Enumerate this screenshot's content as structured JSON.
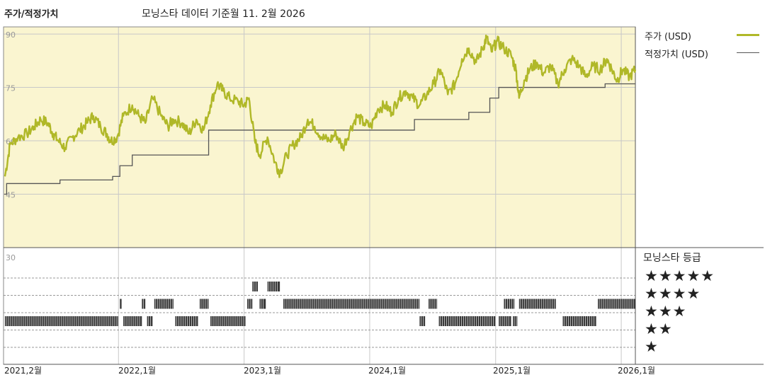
{
  "header": {
    "left_title": "주가/적정가치",
    "source_note": "모닝스타 데이터 기준월 11. 2월 2026"
  },
  "legend": {
    "price_label": "주가 (USD)",
    "fair_label": "적정가치 (USD)",
    "price_color": "#b0b828",
    "fair_color": "#555555"
  },
  "colors": {
    "plot_background": "#faf5d0",
    "rating_bar": "#3a3a3a"
  },
  "rating_panel": {
    "title": "모닝스타 등급",
    "star_labels": [
      "★★★★★",
      "★★★★",
      "★★★",
      "★★",
      "★"
    ]
  },
  "chart_data": {
    "type": "line",
    "yticks": [
      "90",
      "75",
      "60",
      "45",
      "30"
    ],
    "ylim": [
      30,
      92
    ],
    "xlim": [
      "2021-02-01",
      "2026-02-11"
    ],
    "xticks": [
      {
        "date": "2021-02-01",
        "label": "2021,2월"
      },
      {
        "date": "2022-01-01",
        "label": "2022,1월"
      },
      {
        "date": "2023-01-01",
        "label": "2023,1월"
      },
      {
        "date": "2024-01-01",
        "label": "2024,1월"
      },
      {
        "date": "2025-01-01",
        "label": "2025,1월"
      },
      {
        "date": "2026-01-01",
        "label": "2026,1월"
      }
    ],
    "series": [
      {
        "name": "주가 (USD)",
        "points": [
          [
            "2021-02-05",
            50
          ],
          [
            "2021-02-20",
            59
          ],
          [
            "2021-03-15",
            61
          ],
          [
            "2021-04-10",
            62
          ],
          [
            "2021-05-01",
            64
          ],
          [
            "2021-05-20",
            66
          ],
          [
            "2021-06-10",
            65
          ],
          [
            "2021-06-25",
            62
          ],
          [
            "2021-07-10",
            60
          ],
          [
            "2021-07-30",
            58
          ],
          [
            "2021-08-20",
            61
          ],
          [
            "2021-09-10",
            63
          ],
          [
            "2021-10-01",
            65
          ],
          [
            "2021-10-20",
            67
          ],
          [
            "2021-11-10",
            64
          ],
          [
            "2021-11-28",
            62
          ],
          [
            "2021-12-10",
            60
          ],
          [
            "2021-12-28",
            61
          ],
          [
            "2022-01-15",
            67
          ],
          [
            "2022-02-10",
            70
          ],
          [
            "2022-03-01",
            67
          ],
          [
            "2022-03-20",
            65
          ],
          [
            "2022-04-10",
            72
          ],
          [
            "2022-05-05",
            67
          ],
          [
            "2022-05-25",
            64
          ],
          [
            "2022-06-10",
            66
          ],
          [
            "2022-07-05",
            65
          ],
          [
            "2022-07-25",
            62
          ],
          [
            "2022-08-15",
            66
          ],
          [
            "2022-09-05",
            63
          ],
          [
            "2022-09-25",
            70
          ],
          [
            "2022-10-15",
            76
          ],
          [
            "2022-11-01",
            74
          ],
          [
            "2022-11-20",
            72
          ],
          [
            "2022-12-15",
            71
          ],
          [
            "2023-01-01",
            70
          ],
          [
            "2023-01-15",
            72
          ],
          [
            "2023-02-01",
            60
          ],
          [
            "2023-02-15",
            56
          ],
          [
            "2023-03-10",
            61
          ],
          [
            "2023-04-01",
            54
          ],
          [
            "2023-04-15",
            51
          ],
          [
            "2023-05-05",
            56
          ],
          [
            "2023-05-25",
            59
          ],
          [
            "2023-06-15",
            61
          ],
          [
            "2023-07-05",
            66
          ],
          [
            "2023-07-25",
            64
          ],
          [
            "2023-08-15",
            61
          ],
          [
            "2023-09-05",
            60
          ],
          [
            "2023-09-25",
            62
          ],
          [
            "2023-10-15",
            58
          ],
          [
            "2023-11-05",
            63
          ],
          [
            "2023-11-25",
            67
          ],
          [
            "2023-12-15",
            65
          ],
          [
            "2024-01-05",
            64
          ],
          [
            "2024-01-25",
            69
          ],
          [
            "2024-02-15",
            70
          ],
          [
            "2024-03-05",
            68
          ],
          [
            "2024-03-25",
            72
          ],
          [
            "2024-04-15",
            74
          ],
          [
            "2024-05-05",
            72
          ],
          [
            "2024-05-25",
            70
          ],
          [
            "2024-06-15",
            73
          ],
          [
            "2024-07-05",
            76
          ],
          [
            "2024-07-25",
            80
          ],
          [
            "2024-08-15",
            73
          ],
          [
            "2024-09-05",
            76
          ],
          [
            "2024-09-25",
            83
          ],
          [
            "2024-10-15",
            86
          ],
          [
            "2024-11-05",
            82
          ],
          [
            "2024-11-25",
            86
          ],
          [
            "2024-12-05",
            89
          ],
          [
            "2024-12-20",
            85
          ],
          [
            "2025-01-05",
            88
          ],
          [
            "2025-01-25",
            86
          ],
          [
            "2025-02-15",
            84
          ],
          [
            "2025-03-01",
            80
          ],
          [
            "2025-03-10",
            72
          ],
          [
            "2025-03-25",
            77
          ],
          [
            "2025-04-10",
            80
          ],
          [
            "2025-05-01",
            82
          ],
          [
            "2025-05-20",
            79
          ],
          [
            "2025-06-10",
            81
          ],
          [
            "2025-07-01",
            76
          ],
          [
            "2025-07-20",
            80
          ],
          [
            "2025-08-10",
            83
          ],
          [
            "2025-09-01",
            81
          ],
          [
            "2025-09-20",
            78
          ],
          [
            "2025-10-10",
            81
          ],
          [
            "2025-11-01",
            80
          ],
          [
            "2025-11-20",
            83
          ],
          [
            "2025-12-05",
            80
          ],
          [
            "2025-12-20",
            77
          ],
          [
            "2026-01-05",
            80
          ],
          [
            "2026-01-25",
            78
          ],
          [
            "2026-02-11",
            80
          ]
        ]
      },
      {
        "name": "적정가치 (USD)",
        "steps": [
          [
            "2021-02-03",
            45
          ],
          [
            "2021-02-10",
            48
          ],
          [
            "2021-07-15",
            49
          ],
          [
            "2021-12-15",
            50
          ],
          [
            "2022-01-05",
            53
          ],
          [
            "2022-02-10",
            56
          ],
          [
            "2022-09-20",
            63
          ],
          [
            "2023-12-10",
            63
          ],
          [
            "2024-05-10",
            66
          ],
          [
            "2024-10-15",
            68
          ],
          [
            "2024-12-15",
            72
          ],
          [
            "2025-01-10",
            75
          ],
          [
            "2025-11-15",
            76
          ],
          [
            "2026-02-11",
            76
          ]
        ]
      }
    ],
    "ratings": {
      "levels": [
        "5",
        "4",
        "3",
        "2",
        "1"
      ],
      "segments": [
        {
          "stars": 2,
          "start": "2021-02-05",
          "end": "2021-12-31"
        },
        {
          "stars": 3,
          "start": "2022-01-05",
          "end": "2022-01-10"
        },
        {
          "stars": 2,
          "start": "2022-01-15",
          "end": "2022-03-10"
        },
        {
          "stars": 3,
          "start": "2022-03-10",
          "end": "2022-03-20"
        },
        {
          "stars": 2,
          "start": "2022-03-25",
          "end": "2022-04-10"
        },
        {
          "stars": 3,
          "start": "2022-04-15",
          "end": "2022-06-10"
        },
        {
          "stars": 2,
          "start": "2022-06-15",
          "end": "2022-08-20"
        },
        {
          "stars": 3,
          "start": "2022-08-25",
          "end": "2022-09-20"
        },
        {
          "stars": 2,
          "start": "2022-09-25",
          "end": "2023-01-05"
        },
        {
          "stars": 3,
          "start": "2023-01-10",
          "end": "2023-01-25"
        },
        {
          "stars": 4,
          "start": "2023-01-25",
          "end": "2023-02-10"
        },
        {
          "stars": 3,
          "start": "2023-02-15",
          "end": "2023-03-05"
        },
        {
          "stars": 4,
          "start": "2023-03-10",
          "end": "2023-04-15"
        },
        {
          "stars": 3,
          "start": "2023-04-25",
          "end": "2024-05-25"
        },
        {
          "stars": 2,
          "start": "2024-05-25",
          "end": "2024-06-10"
        },
        {
          "stars": 3,
          "start": "2024-06-20",
          "end": "2024-07-15"
        },
        {
          "stars": 2,
          "start": "2024-07-20",
          "end": "2024-12-31"
        },
        {
          "stars": 2,
          "start": "2025-01-10",
          "end": "2025-02-15"
        },
        {
          "stars": 3,
          "start": "2025-01-25",
          "end": "2025-02-25"
        },
        {
          "stars": 2,
          "start": "2025-02-20",
          "end": "2025-03-05"
        },
        {
          "stars": 3,
          "start": "2025-03-10",
          "end": "2025-06-25"
        },
        {
          "stars": 2,
          "start": "2025-07-15",
          "end": "2025-10-20"
        },
        {
          "stars": 3,
          "start": "2025-10-25",
          "end": "2026-02-11"
        }
      ]
    }
  }
}
